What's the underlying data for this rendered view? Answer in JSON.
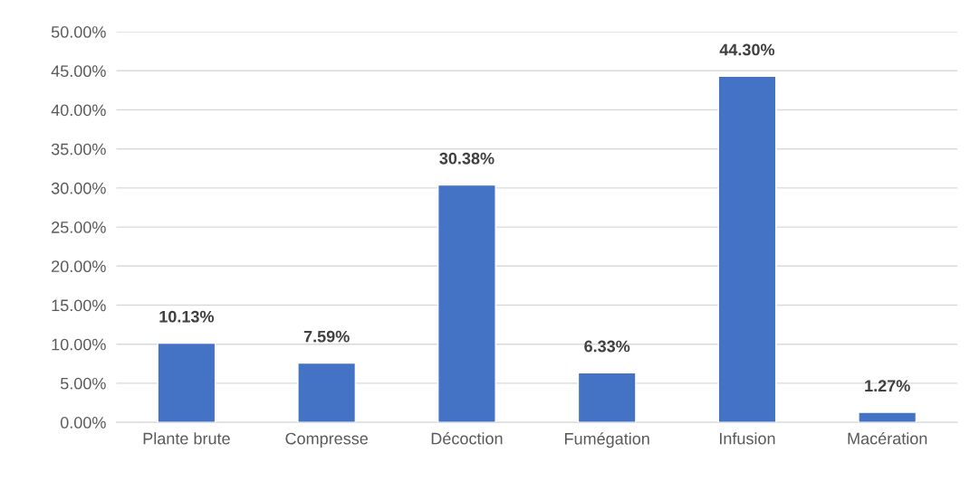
{
  "chart_data": {
    "type": "bar",
    "categories": [
      "Plante brute",
      "Compresse",
      "Décoction",
      "Fumégation",
      "Infusion",
      "Macération"
    ],
    "values": [
      10.13,
      7.59,
      30.38,
      6.33,
      44.3,
      1.27
    ],
    "value_labels": [
      "10.13%",
      "7.59%",
      "30.38%",
      "6.33%",
      "44.30%",
      "1.27%"
    ],
    "color": "#4472c4",
    "ylim": [
      0,
      50
    ],
    "yticks": [
      {
        "value": 0,
        "label": "0.00%"
      },
      {
        "value": 5,
        "label": "5.00%"
      },
      {
        "value": 10,
        "label": "10.00%"
      },
      {
        "value": 15,
        "label": "15.00%"
      },
      {
        "value": 20,
        "label": "20.00%"
      },
      {
        "value": 25,
        "label": "25.00%"
      },
      {
        "value": 30,
        "label": "30.00%"
      },
      {
        "value": 35,
        "label": "35.00%"
      },
      {
        "value": 40,
        "label": "40.00%"
      },
      {
        "value": 45,
        "label": "45.00%"
      },
      {
        "value": 50,
        "label": "50.00%"
      }
    ],
    "grid": "y"
  }
}
